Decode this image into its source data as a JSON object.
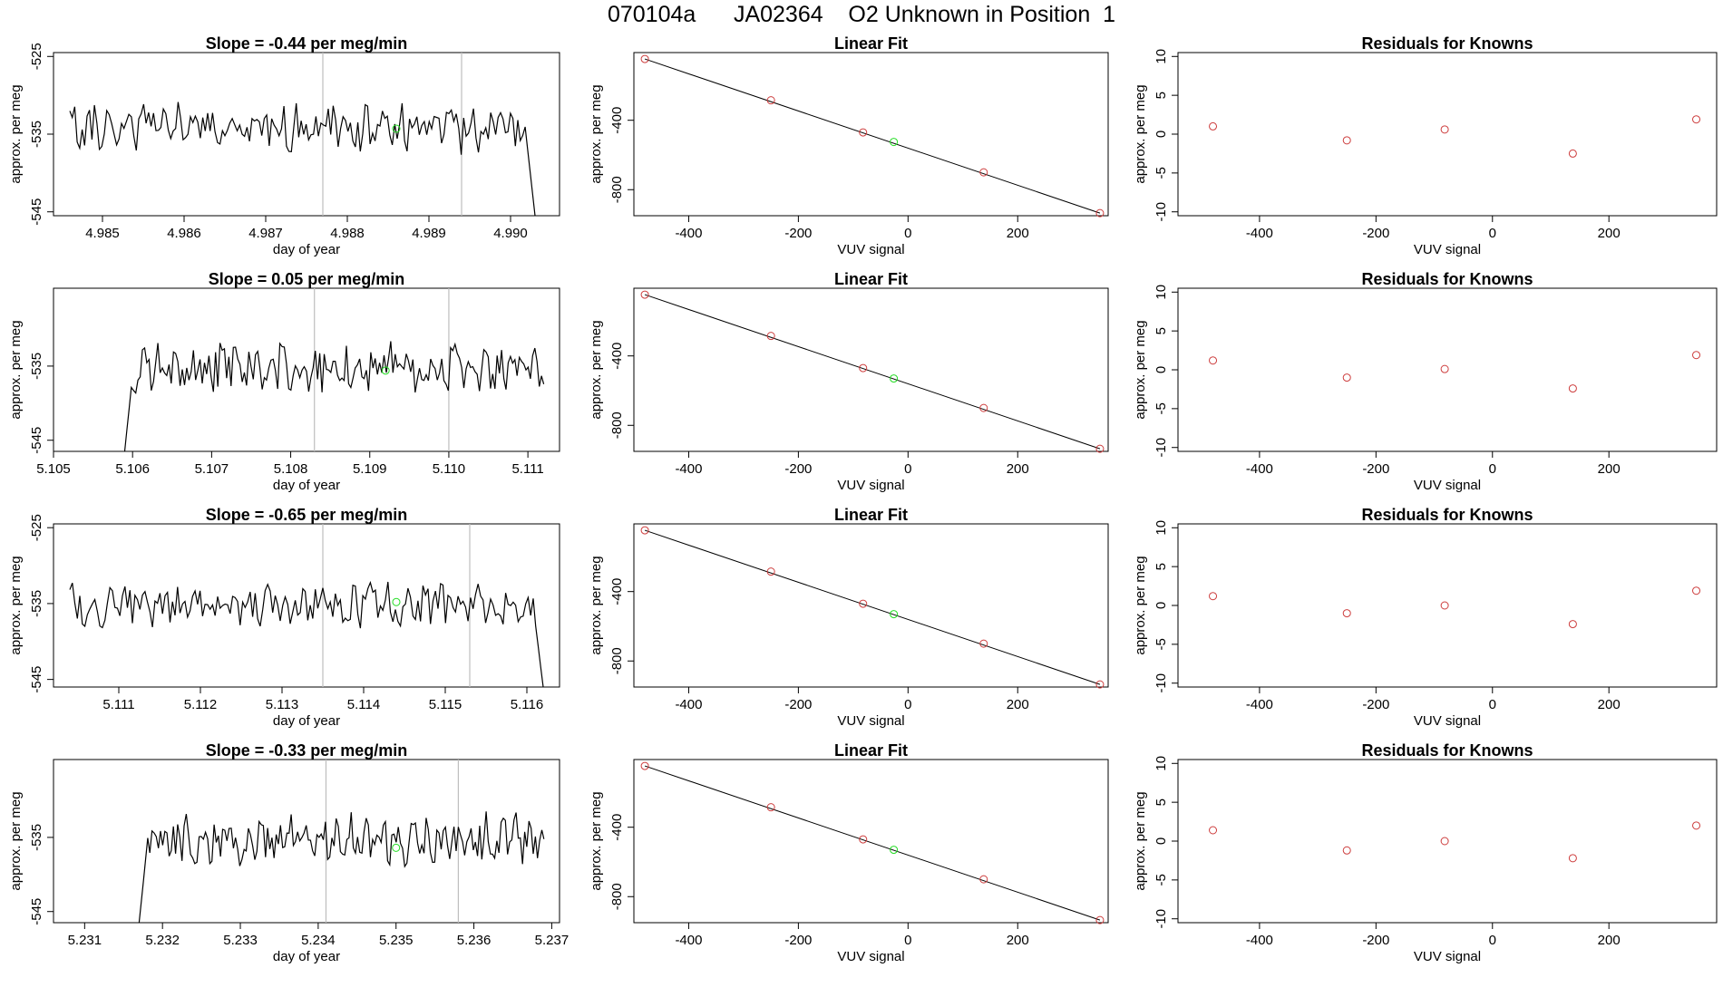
{
  "figure": {
    "title": "070104a      JA02364    O2 Unknown in Position  1"
  },
  "colors": {
    "trace": "#000000",
    "known_point": "#cd3c3c",
    "unknown_point": "#22dd22",
    "vline": "#bebebe",
    "axis": "#000000"
  },
  "chart_data": [
    {
      "type": "line",
      "panel": "timeseries",
      "row": 0,
      "title": "Slope =  -0.44  per meg/min",
      "xlabel": "day of year",
      "ylabel": "approx. per meg",
      "xlim": [
        4.9844,
        4.9906
      ],
      "ylim": [
        -545.5,
        -524.5
      ],
      "xticks": [
        4.985,
        4.986,
        4.987,
        4.988,
        4.989,
        4.99
      ],
      "xticklabels": [
        "4.985",
        "4.986",
        "4.987",
        "4.988",
        "4.989",
        "4.990"
      ],
      "yticks": [
        -525,
        -535,
        -545
      ],
      "yticklabels": [
        "-525",
        "-535",
        "-545"
      ],
      "series_range": [
        4.9846,
        4.9903
      ],
      "seed": 11,
      "base": -534.2,
      "amp": 2.6,
      "start_ramp": null,
      "end_drop": -545.5,
      "vlines": [
        4.9877,
        4.9894
      ],
      "unknown_marker": {
        "x": 4.9886,
        "y": -534.3
      }
    },
    {
      "type": "scatter",
      "panel": "fit",
      "row": 0,
      "title": "Linear Fit",
      "xlabel": "VUV signal",
      "ylabel": "approx. per meg",
      "xlim": [
        -500,
        365
      ],
      "ylim": [
        -950,
        -10
      ],
      "xticks": [
        -400,
        -200,
        0,
        200
      ],
      "xticklabels": [
        "-400",
        "-200",
        "0",
        "200"
      ],
      "yticks": [
        -400,
        -800
      ],
      "yticklabels": [
        "-400",
        "-800"
      ],
      "line": {
        "x": [
          -480,
          350
        ],
        "y": [
          -47,
          -935
        ]
      },
      "knowns": [
        {
          "x": -480,
          "y": -47
        },
        {
          "x": -250,
          "y": -285
        },
        {
          "x": -82,
          "y": -470
        },
        {
          "x": 138,
          "y": -700
        },
        {
          "x": 350,
          "y": -935
        }
      ],
      "unknown": {
        "x": -26,
        "y": -525
      }
    },
    {
      "type": "scatter",
      "panel": "residuals",
      "row": 0,
      "title": "Residuals for Knowns",
      "xlabel": "VUV signal",
      "ylabel": "approx. per meg",
      "xlim": [
        -540,
        385
      ],
      "ylim": [
        -10.5,
        10.5
      ],
      "xticks": [
        -400,
        -200,
        0,
        200
      ],
      "xticklabels": [
        "-400",
        "-200",
        "0",
        "200"
      ],
      "yticks": [
        10,
        5,
        0,
        -5,
        -10
      ],
      "yticklabels": [
        "10",
        "5",
        "0",
        "-5",
        "-10"
      ],
      "points": [
        {
          "x": -480,
          "y": 1.0
        },
        {
          "x": -250,
          "y": -0.8
        },
        {
          "x": -82,
          "y": 0.6
        },
        {
          "x": 138,
          "y": -2.5
        },
        {
          "x": 350,
          "y": 1.9
        }
      ]
    },
    {
      "type": "line",
      "panel": "timeseries",
      "row": 1,
      "title": "Slope =  0.05  per meg/min",
      "xlabel": "day of year",
      "ylabel": "approx. per meg",
      "xlim": [
        5.105,
        5.1114
      ],
      "ylim": [
        -546.5,
        -524.5
      ],
      "xticks": [
        5.105,
        5.106,
        5.107,
        5.108,
        5.109,
        5.11,
        5.111
      ],
      "xticklabels": [
        "5.105",
        "5.106",
        "5.107",
        "5.108",
        "5.109",
        "5.110",
        "5.111"
      ],
      "yticks": [
        -535,
        -545
      ],
      "yticklabels": [
        "-535",
        "-545"
      ],
      "series_range": [
        5.1059,
        5.1112
      ],
      "seed": 23,
      "base": -535.0,
      "amp": 2.9,
      "start_ramp": -546.5,
      "end_drop": null,
      "vlines": [
        5.1083,
        5.11
      ],
      "unknown_marker": {
        "x": 5.1092,
        "y": -535.6
      }
    },
    {
      "type": "scatter",
      "panel": "fit",
      "row": 1,
      "title": "Linear Fit",
      "xlabel": "VUV signal",
      "ylabel": "approx. per meg",
      "xlim": [
        -500,
        365
      ],
      "ylim": [
        -950,
        -10
      ],
      "xticks": [
        -400,
        -200,
        0,
        200
      ],
      "xticklabels": [
        "-400",
        "-200",
        "0",
        "200"
      ],
      "yticks": [
        -400,
        -800
      ],
      "yticklabels": [
        "-400",
        "-800"
      ],
      "line": {
        "x": [
          -480,
          350
        ],
        "y": [
          -47,
          -935
        ]
      },
      "knowns": [
        {
          "x": -480,
          "y": -47
        },
        {
          "x": -250,
          "y": -285
        },
        {
          "x": -82,
          "y": -470
        },
        {
          "x": 138,
          "y": -700
        },
        {
          "x": 350,
          "y": -935
        }
      ],
      "unknown": {
        "x": -26,
        "y": -530
      }
    },
    {
      "type": "scatter",
      "panel": "residuals",
      "row": 1,
      "title": "Residuals for Knowns",
      "xlabel": "VUV signal",
      "ylabel": "approx. per meg",
      "xlim": [
        -540,
        385
      ],
      "ylim": [
        -10.5,
        10.5
      ],
      "xticks": [
        -400,
        -200,
        0,
        200
      ],
      "xticklabels": [
        "-400",
        "-200",
        "0",
        "200"
      ],
      "yticks": [
        10,
        5,
        0,
        -5,
        -10
      ],
      "yticklabels": [
        "10",
        "5",
        "0",
        "-5",
        "-10"
      ],
      "points": [
        {
          "x": -480,
          "y": 1.2
        },
        {
          "x": -250,
          "y": -1.0
        },
        {
          "x": -82,
          "y": 0.1
        },
        {
          "x": 138,
          "y": -2.4
        },
        {
          "x": 350,
          "y": 1.9
        }
      ]
    },
    {
      "type": "line",
      "panel": "timeseries",
      "row": 2,
      "title": "Slope =  -0.65  per meg/min",
      "xlabel": "day of year",
      "ylabel": "approx. per meg",
      "xlim": [
        5.1102,
        5.1164
      ],
      "ylim": [
        -546.0,
        -524.5
      ],
      "xticks": [
        5.111,
        5.112,
        5.113,
        5.114,
        5.115,
        5.116
      ],
      "xticklabels": [
        "5.111",
        "5.112",
        "5.113",
        "5.114",
        "5.115",
        "5.116"
      ],
      "yticks": [
        -525,
        -535,
        -545
      ],
      "yticklabels": [
        "-525",
        "-535",
        "-545"
      ],
      "series_range": [
        5.1104,
        5.1162
      ],
      "seed": 37,
      "base": -535.3,
      "amp": 2.4,
      "start_ramp": null,
      "end_drop": -546.0,
      "vlines": [
        5.1135,
        5.1153
      ],
      "unknown_marker": {
        "x": 5.1144,
        "y": -534.8
      }
    },
    {
      "type": "scatter",
      "panel": "fit",
      "row": 2,
      "title": "Linear Fit",
      "xlabel": "VUV signal",
      "ylabel": "approx. per meg",
      "xlim": [
        -500,
        365
      ],
      "ylim": [
        -950,
        -10
      ],
      "xticks": [
        -400,
        -200,
        0,
        200
      ],
      "xticklabels": [
        "-400",
        "-200",
        "0",
        "200"
      ],
      "yticks": [
        -400,
        -800
      ],
      "yticklabels": [
        "-400",
        "-800"
      ],
      "line": {
        "x": [
          -480,
          350
        ],
        "y": [
          -47,
          -935
        ]
      },
      "knowns": [
        {
          "x": -480,
          "y": -47
        },
        {
          "x": -250,
          "y": -285
        },
        {
          "x": -82,
          "y": -470
        },
        {
          "x": 138,
          "y": -700
        },
        {
          "x": 350,
          "y": -935
        }
      ],
      "unknown": {
        "x": -26,
        "y": -530
      }
    },
    {
      "type": "scatter",
      "panel": "residuals",
      "row": 2,
      "title": "Residuals for Knowns",
      "xlabel": "VUV signal",
      "ylabel": "approx. per meg",
      "xlim": [
        -540,
        385
      ],
      "ylim": [
        -10.5,
        10.5
      ],
      "xticks": [
        -400,
        -200,
        0,
        200
      ],
      "xticklabels": [
        "-400",
        "-200",
        "0",
        "200"
      ],
      "yticks": [
        10,
        5,
        0,
        -5,
        -10
      ],
      "yticklabels": [
        "10",
        "5",
        "0",
        "-5",
        "-10"
      ],
      "points": [
        {
          "x": -480,
          "y": 1.2
        },
        {
          "x": -250,
          "y": -1.0
        },
        {
          "x": -82,
          "y": 0.0
        },
        {
          "x": 138,
          "y": -2.4
        },
        {
          "x": 350,
          "y": 1.9
        }
      ]
    },
    {
      "type": "line",
      "panel": "timeseries",
      "row": 3,
      "title": "Slope =  -0.33  per meg/min",
      "xlabel": "day of year",
      "ylabel": "approx. per meg",
      "xlim": [
        5.2306,
        5.2371
      ],
      "ylim": [
        -546.5,
        -524.5
      ],
      "xticks": [
        5.231,
        5.232,
        5.233,
        5.234,
        5.235,
        5.236,
        5.237
      ],
      "xticklabels": [
        "5.231",
        "5.232",
        "5.233",
        "5.234",
        "5.235",
        "5.236",
        "5.237"
      ],
      "yticks": [
        -535,
        -545
      ],
      "yticklabels": [
        "-535",
        "-545"
      ],
      "series_range": [
        5.2317,
        5.2369
      ],
      "seed": 53,
      "base": -535.2,
      "amp": 2.8,
      "start_ramp": -546.5,
      "end_drop": null,
      "vlines": [
        5.2341,
        5.2358
      ],
      "unknown_marker": {
        "x": 5.235,
        "y": -536.4
      }
    },
    {
      "type": "scatter",
      "panel": "fit",
      "row": 3,
      "title": "Linear Fit",
      "xlabel": "VUV signal",
      "ylabel": "approx. per meg",
      "xlim": [
        -500,
        365
      ],
      "ylim": [
        -950,
        -10
      ],
      "xticks": [
        -400,
        -200,
        0,
        200
      ],
      "xticklabels": [
        "-400",
        "-200",
        "0",
        "200"
      ],
      "yticks": [
        -400,
        -800
      ],
      "yticklabels": [
        "-400",
        "-800"
      ],
      "line": {
        "x": [
          -480,
          350
        ],
        "y": [
          -47,
          -935
        ]
      },
      "knowns": [
        {
          "x": -480,
          "y": -47
        },
        {
          "x": -250,
          "y": -285
        },
        {
          "x": -82,
          "y": -470
        },
        {
          "x": 138,
          "y": -700
        },
        {
          "x": 350,
          "y": -935
        }
      ],
      "unknown": {
        "x": -26,
        "y": -530
      }
    },
    {
      "type": "scatter",
      "panel": "residuals",
      "row": 3,
      "title": "Residuals for Knowns",
      "xlabel": "VUV signal",
      "ylabel": "approx. per meg",
      "xlim": [
        -540,
        385
      ],
      "ylim": [
        -10.5,
        10.5
      ],
      "xticks": [
        -400,
        -200,
        0,
        200
      ],
      "xticklabels": [
        "-400",
        "-200",
        "0",
        "200"
      ],
      "yticks": [
        10,
        5,
        0,
        -5,
        -10
      ],
      "yticklabels": [
        "10",
        "5",
        "0",
        "-5",
        "-10"
      ],
      "points": [
        {
          "x": -480,
          "y": 1.4
        },
        {
          "x": -250,
          "y": -1.2
        },
        {
          "x": -82,
          "y": 0.0
        },
        {
          "x": 138,
          "y": -2.2
        },
        {
          "x": 350,
          "y": 2.0
        }
      ]
    }
  ]
}
